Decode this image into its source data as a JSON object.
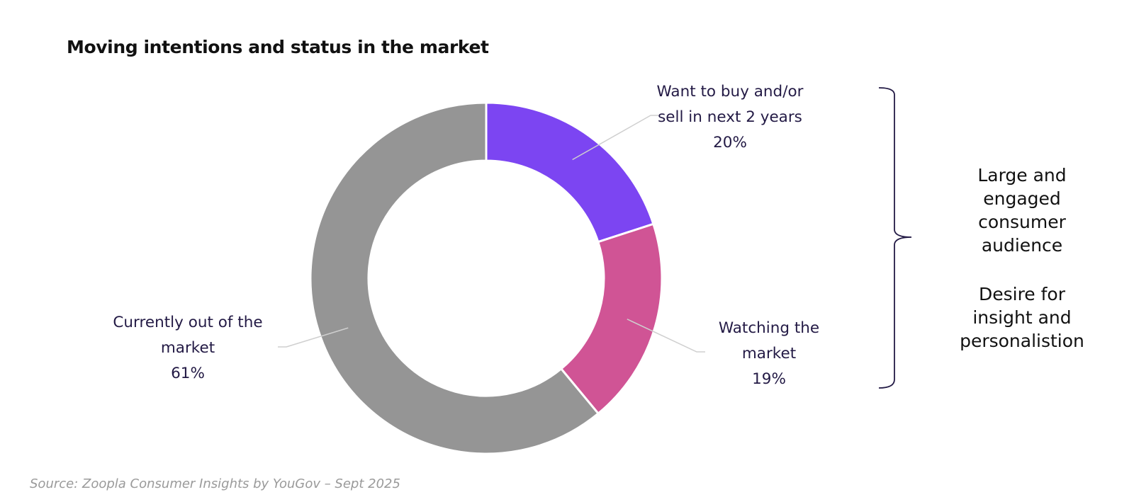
{
  "chart_data": {
    "type": "pie",
    "title": "Moving intentions and status in the market",
    "slices": [
      {
        "label_lines": [
          "Want to buy and/or",
          "sell in next 2 years"
        ],
        "value": 20,
        "value_label": "20%",
        "color": "#7c45f2"
      },
      {
        "label_lines": [
          "Watching the",
          "market"
        ],
        "value": 19,
        "value_label": "19%",
        "color": "#d05495"
      },
      {
        "label_lines": [
          "Currently out of the",
          "market"
        ],
        "value": 61,
        "value_label": "61%",
        "color": "#959595"
      }
    ]
  },
  "annotation": {
    "group1": [
      "Large and",
      "engaged",
      "consumer",
      "audience"
    ],
    "group2": [
      "Desire for",
      "insight and",
      "personalistion"
    ],
    "bracket_color": "#231a45"
  },
  "source": "Source:  Zoopla Consumer Insights by YouGov – Sept 2025"
}
